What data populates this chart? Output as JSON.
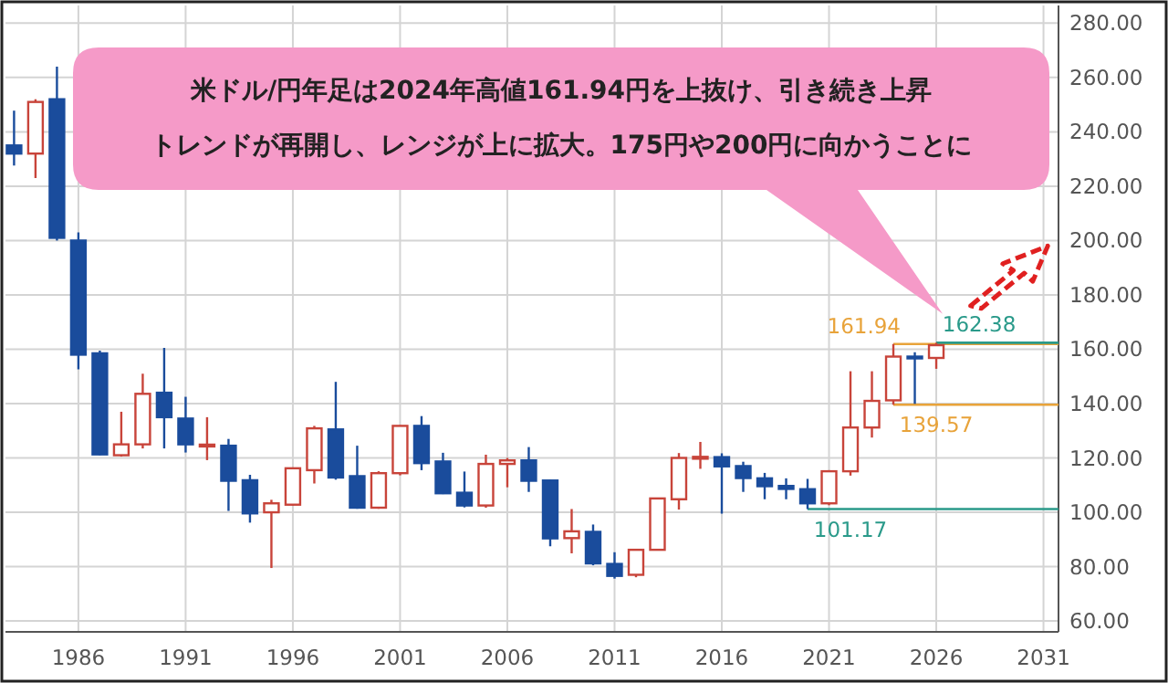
{
  "chart_data": {
    "type": "candlestick",
    "annotations": [
      "米ドル/円年足は2024年高値161.94円を上抜け、引き続き上昇",
      "トレンドが再開し、レンジが上に拡大。175円や200円に向かうことに",
      {
        "text": "161.94",
        "x": 2024,
        "y": 161.94
      },
      {
        "text": "162.38",
        "x": 2028,
        "y": 162.38
      },
      {
        "text": "139.57",
        "x": 2026,
        "y": 139.57
      },
      {
        "text": "101.17",
        "x": 2022,
        "y": 101.17
      }
    ],
    "x": [
      1983,
      1984,
      1985,
      1986,
      1987,
      1988,
      1989,
      1990,
      1991,
      1992,
      1993,
      1994,
      1995,
      1996,
      1997,
      1998,
      1999,
      2000,
      2001,
      2002,
      2003,
      2004,
      2005,
      2006,
      2007,
      2008,
      2009,
      2010,
      2011,
      2012,
      2013,
      2014,
      2015,
      2016,
      2017,
      2018,
      2019,
      2020,
      2021,
      2022,
      2023,
      2024,
      2025,
      2026
    ],
    "ohlc": [
      [
        235,
        247.8,
        227.6,
        232
      ],
      [
        232,
        252,
        223,
        251
      ],
      [
        252,
        264,
        200,
        201
      ],
      [
        200,
        203,
        152.6,
        158
      ],
      [
        158.5,
        159.5,
        121,
        121.3
      ],
      [
        121,
        137,
        120.5,
        125
      ],
      [
        125,
        151,
        123.5,
        143.6
      ],
      [
        144,
        160.5,
        123.5,
        135
      ],
      [
        134.5,
        142.5,
        122,
        125
      ],
      [
        124.8,
        135,
        119.2,
        124.9
      ],
      [
        124.5,
        127,
        100.5,
        111.6
      ],
      [
        111.8,
        113.8,
        96.2,
        99.6
      ],
      [
        100,
        104.6,
        79.5,
        103.3
      ],
      [
        102.8,
        116.5,
        102.5,
        116.2
      ],
      [
        115.5,
        131.8,
        110.6,
        130.9
      ],
      [
        130.5,
        148,
        112,
        112.8
      ],
      [
        113.3,
        124.5,
        101.3,
        101.7
      ],
      [
        101.7,
        115.1,
        101.3,
        114.4
      ],
      [
        114.4,
        132,
        113.6,
        131.8
      ],
      [
        131.8,
        135.4,
        115.5,
        118.1
      ],
      [
        118.7,
        121.9,
        106.7,
        107
      ],
      [
        107.2,
        115,
        101.8,
        102.5
      ],
      [
        102.5,
        121.2,
        101.7,
        117.8
      ],
      [
        117.8,
        120,
        109.2,
        119.1
      ],
      [
        119.1,
        124,
        107.5,
        111.6
      ],
      [
        111.7,
        112,
        87.5,
        90.4
      ],
      [
        90.5,
        101.2,
        84.9,
        93
      ],
      [
        92.8,
        95.5,
        80.5,
        81.2
      ],
      [
        81,
        85.3,
        75.6,
        76.6
      ],
      [
        77,
        86.4,
        76.1,
        86.2
      ],
      [
        86.2,
        105.4,
        85.9,
        105.1
      ],
      [
        104.8,
        121.8,
        101,
        120
      ],
      [
        120,
        125.9,
        116,
        120.4
      ],
      [
        120.3,
        121.7,
        99.5,
        116.9
      ],
      [
        117,
        118.6,
        107.5,
        112.6
      ],
      [
        112.5,
        114.5,
        104.8,
        109.6
      ],
      [
        109.7,
        112.5,
        104.8,
        108.6
      ],
      [
        108.5,
        112.3,
        101.17,
        103.3
      ],
      [
        103.3,
        115.5,
        102.6,
        115.1
      ],
      [
        115.1,
        151.9,
        113.5,
        131.2
      ],
      [
        131.2,
        151.9,
        127.5,
        141
      ],
      [
        141.2,
        161.94,
        139.57,
        157.3
      ],
      [
        157.3,
        158.9,
        139.9,
        156.8
      ],
      [
        156.8,
        162.38,
        152.8,
        161.5
      ]
    ],
    "colors": [
      "#1a4c9c",
      "#c8443a",
      "#1a4c9c",
      "#1a4c9c",
      "#1a4c9c",
      "#c8443a",
      "#c8443a",
      "#1a4c9c",
      "#1a4c9c",
      "#c8443a",
      "#1a4c9c",
      "#1a4c9c",
      "#c8443a",
      "#c8443a",
      "#c8443a",
      "#1a4c9c",
      "#1a4c9c",
      "#c8443a",
      "#c8443a",
      "#1a4c9c",
      "#1a4c9c",
      "#1a4c9c",
      "#c8443a",
      "#c8443a",
      "#1a4c9c",
      "#1a4c9c",
      "#c8443a",
      "#1a4c9c",
      "#1a4c9c",
      "#c8443a",
      "#c8443a",
      "#c8443a",
      "#c8443a",
      "#1a4c9c",
      "#1a4c9c",
      "#1a4c9c",
      "#1a4c9c",
      "#1a4c9c",
      "#c8443a",
      "#c8443a",
      "#c8443a",
      "#c8443a",
      "#1a4c9c",
      "#c8443a"
    ],
    "series": [
      {
        "type": "line",
        "color": "#e8a33a",
        "x": [
          2024,
          2031.7
        ],
        "values": [
          161.94,
          161.94
        ]
      },
      {
        "type": "line",
        "color": "#2a9a8a",
        "x": [
          2026,
          2031.7
        ],
        "values": [
          162.38,
          162.38
        ]
      },
      {
        "type": "line",
        "color": "#e8a33a",
        "x": [
          2024,
          2031.7
        ],
        "values": [
          139.57,
          139.57
        ]
      },
      {
        "type": "line",
        "color": "#2a9a8a",
        "x": [
          2020,
          2031.7
        ],
        "values": [
          101.17,
          101.17
        ]
      }
    ],
    "xlim": [
      1982.6,
      2031.7
    ],
    "xticks": [
      1986,
      1991,
      1996,
      2001,
      2006,
      2011,
      2016,
      2021,
      2026,
      2031
    ],
    "ylim": [
      56,
      286.5
    ],
    "yticks": [
      {
        "value": 60,
        "label": "60.00"
      },
      {
        "value": 80,
        "label": "80.00"
      },
      {
        "value": 100,
        "label": "100.00"
      },
      {
        "value": 120,
        "label": "120.00"
      },
      {
        "value": 140,
        "label": "140.00"
      },
      {
        "value": 160,
        "label": "160.00"
      },
      {
        "value": 180,
        "label": "180.00"
      },
      {
        "value": 200,
        "label": "200.00"
      },
      {
        "value": 220,
        "label": "220.00"
      },
      {
        "value": 240,
        "label": "240.00"
      },
      {
        "value": 260,
        "label": "260.00"
      },
      {
        "value": 280,
        "label": "280.00"
      }
    ],
    "grid": true
  }
}
